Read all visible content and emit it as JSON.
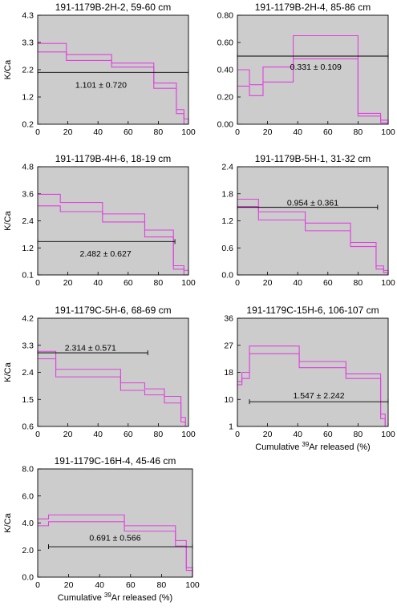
{
  "figure": {
    "y_axis_label": "K/Ca",
    "x_axis_label_pre": "Cumulative ",
    "x_axis_label_sup": "39",
    "x_axis_label_post": "Ar released (%)",
    "plot_bg": "#cccccc",
    "spectrum_color": "#e040e0"
  },
  "chart_data": [
    {
      "type": "line",
      "title": "191-1179B-2H-2, 59-60 cm",
      "xlabel": "",
      "ylabel": "K/Ca",
      "xlim": [
        0,
        100
      ],
      "ylim": [
        0.2,
        4.3
      ],
      "xticks": [
        "0",
        "20",
        "40",
        "60",
        "80",
        "100"
      ],
      "yticks": [
        "0.2",
        "1.2",
        "2.2",
        "3.3",
        "4.3"
      ],
      "series": [
        {
          "steps": [
            [
              0,
              3.24
            ],
            [
              19,
              2.82
            ],
            [
              49,
              2.5
            ],
            [
              77,
              1.75
            ],
            [
              92,
              0.75
            ],
            [
              97,
              0.4
            ]
          ],
          "end_x": 100
        },
        {
          "steps": [
            [
              0,
              2.92
            ],
            [
              19,
              2.6
            ],
            [
              49,
              2.35
            ],
            [
              77,
              1.55
            ],
            [
              92,
              0.6
            ],
            [
              97,
              0.2
            ]
          ],
          "end_x": 100
        }
      ],
      "mean": {
        "x1": 0,
        "x2": 100,
        "y": 2.15,
        "label": "1.101 ± 0.720",
        "label_x": 42,
        "label_y": 1.68
      }
    },
    {
      "type": "line",
      "title": "191-1179B-2H-4, 85-86 cm",
      "xlabel": "",
      "ylabel": "",
      "xlim": [
        0,
        100
      ],
      "ylim": [
        0.0,
        0.8
      ],
      "xticks": [
        "0",
        "20",
        "40",
        "60",
        "80",
        "100"
      ],
      "yticks": [
        "0.00",
        "0.20",
        "0.40",
        "0.60",
        "0.80"
      ],
      "series": [
        {
          "steps": [
            [
              0,
              0.4
            ],
            [
              8,
              0.29
            ],
            [
              17,
              0.42
            ],
            [
              37,
              0.65
            ],
            [
              80,
              0.08
            ],
            [
              95,
              0.03
            ]
          ],
          "end_x": 100
        },
        {
          "steps": [
            [
              0,
              0.28
            ],
            [
              8,
              0.21
            ],
            [
              17,
              0.31
            ],
            [
              37,
              0.48
            ],
            [
              80,
              0.06
            ],
            [
              95,
              0.01
            ]
          ],
          "end_x": 100
        }
      ],
      "mean": {
        "x1": 0,
        "x2": 100,
        "y": 0.5,
        "label": "0.331 ± 0.109",
        "label_x": 52,
        "label_y": 0.42
      }
    },
    {
      "type": "line",
      "title": "191-1179B-4H-6, 18-19 cm",
      "xlabel": "",
      "ylabel": "K/Ca",
      "xlim": [
        0,
        100
      ],
      "ylim": [
        0.1,
        4.8
      ],
      "xticks": [
        "0",
        "20",
        "40",
        "60",
        "80",
        "100"
      ],
      "yticks": [
        "0.1",
        "1.2",
        "2.4",
        "3.6",
        "4.8"
      ],
      "series": [
        {
          "steps": [
            [
              0,
              3.6
            ],
            [
              15,
              3.25
            ],
            [
              43,
              2.75
            ],
            [
              71,
              2.05
            ],
            [
              90,
              0.5
            ],
            [
              97,
              0.3
            ]
          ],
          "end_x": 100
        },
        {
          "steps": [
            [
              0,
              3.1
            ],
            [
              15,
              2.85
            ],
            [
              43,
              2.4
            ],
            [
              71,
              1.75
            ],
            [
              90,
              0.35
            ],
            [
              97,
              0.1
            ]
          ],
          "end_x": 100
        }
      ],
      "mean": {
        "x1": 0,
        "x2": 91,
        "y": 1.55,
        "label": "2.482 ± 0.627",
        "label_x": 45,
        "label_y": 1.02
      }
    },
    {
      "type": "line",
      "title": "191-1179B-5H-1, 31-32 cm",
      "xlabel": "",
      "ylabel": "",
      "xlim": [
        0,
        100
      ],
      "ylim": [
        0.0,
        2.4
      ],
      "xticks": [
        "0",
        "20",
        "40",
        "60",
        "80",
        "100"
      ],
      "yticks": [
        "0.0",
        "0.6",
        "1.2",
        "1.8",
        "2.4"
      ],
      "series": [
        {
          "steps": [
            [
              0,
              1.68
            ],
            [
              14,
              1.4
            ],
            [
              45,
              1.15
            ],
            [
              75,
              0.72
            ],
            [
              92,
              0.2
            ],
            [
              97,
              0.1
            ]
          ],
          "end_x": 100
        },
        {
          "steps": [
            [
              0,
              1.52
            ],
            [
              14,
              1.22
            ],
            [
              45,
              0.98
            ],
            [
              75,
              0.63
            ],
            [
              92,
              0.13
            ],
            [
              97,
              0.05
            ]
          ],
          "end_x": 100
        }
      ],
      "mean": {
        "x1": 0,
        "x2": 93,
        "y": 1.5,
        "label": "0.954 ± 0.361",
        "label_x": 50,
        "label_y": 1.6
      }
    },
    {
      "type": "line",
      "title": "191-1179C-5H-6, 68-69 cm",
      "xlabel": "",
      "ylabel": "K/Ca",
      "xlim": [
        0,
        100
      ],
      "ylim": [
        0.6,
        4.2
      ],
      "xticks": [
        "0",
        "20",
        "40",
        "60",
        "80",
        "100"
      ],
      "yticks": [
        "0.6",
        "1.5",
        "2.4",
        "3.3",
        "4.2"
      ],
      "series": [
        {
          "steps": [
            [
              0,
              3.1
            ],
            [
              12,
              2.5
            ],
            [
              55,
              2.05
            ],
            [
              71,
              1.85
            ],
            [
              84,
              1.6
            ],
            [
              95,
              0.9
            ]
          ],
          "end_x": 98
        },
        {
          "steps": [
            [
              0,
              2.85
            ],
            [
              12,
              2.25
            ],
            [
              55,
              1.8
            ],
            [
              71,
              1.65
            ],
            [
              84,
              1.38
            ],
            [
              95,
              0.75
            ]
          ],
          "end_x": 98
        }
      ],
      "mean": {
        "x1": 0,
        "x2": 73,
        "y": 3.05,
        "label": "2.314 ± 0.571",
        "label_x": 35,
        "label_y": 3.22
      }
    },
    {
      "type": "line",
      "title": "191-1179C-15H-6, 106-107 cm",
      "xlabel": "Cumulative 39Ar released (%)",
      "ylabel": "",
      "xlim": [
        0,
        100
      ],
      "ylim": [
        1,
        36
      ],
      "xticks": [
        "0",
        "20",
        "40",
        "60",
        "80",
        "100"
      ],
      "yticks": [
        "1",
        "10",
        "18",
        "27",
        "36"
      ],
      "series": [
        {
          "steps": [
            [
              0,
              15.5
            ],
            [
              3,
              18.5
            ],
            [
              8,
              27.0
            ],
            [
              41,
              22.0
            ],
            [
              72,
              18.0
            ],
            [
              95,
              5.0
            ]
          ],
          "end_x": 98
        },
        {
          "steps": [
            [
              0,
              14.5
            ],
            [
              3,
              16.5
            ],
            [
              8,
              24.5
            ],
            [
              41,
              20.0
            ],
            [
              72,
              16.5
            ],
            [
              95,
              3.5
            ]
          ],
          "end_x": 98
        }
      ],
      "mean": {
        "x1": 8,
        "x2": 100,
        "y": 9.0,
        "label": "1.547 ± 2.242",
        "label_x": 54,
        "label_y": 11.0
      }
    },
    {
      "type": "line",
      "title": "191-1179C-16H-4, 45-46 cm",
      "xlabel": "Cumulative 39Ar released (%)",
      "ylabel": "K/Ca",
      "xlim": [
        0,
        100
      ],
      "ylim": [
        0.0,
        8.0
      ],
      "xticks": [
        "0",
        "20",
        "40",
        "60",
        "80",
        "100"
      ],
      "yticks": [
        "0.0",
        "2.0",
        "4.0",
        "6.0",
        "8.0"
      ],
      "series": [
        {
          "steps": [
            [
              0,
              4.3
            ],
            [
              7,
              4.6
            ],
            [
              56,
              3.8
            ],
            [
              89,
              2.7
            ],
            [
              96,
              0.7
            ]
          ],
          "end_x": 100
        },
        {
          "steps": [
            [
              0,
              3.8
            ],
            [
              7,
              4.1
            ],
            [
              56,
              3.4
            ],
            [
              89,
              2.3
            ],
            [
              96,
              0.5
            ]
          ],
          "end_x": 100
        }
      ],
      "mean": {
        "x1": 7,
        "x2": 100,
        "y": 2.25,
        "label": "0.691 ± 0.566",
        "label_x": 50,
        "label_y": 2.9
      }
    }
  ]
}
